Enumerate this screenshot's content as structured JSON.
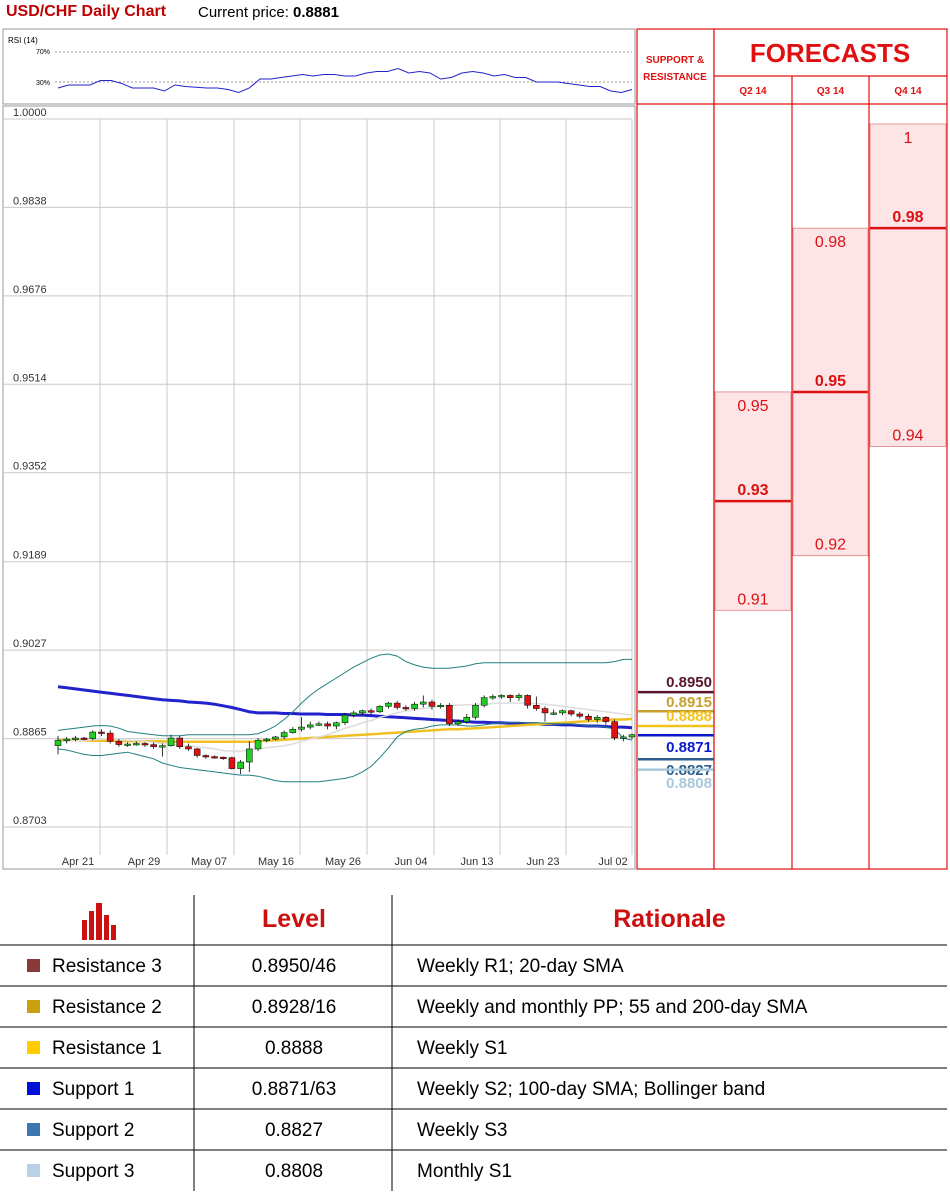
{
  "header": {
    "title": "USD/CHF Daily Chart",
    "price_prefix": "Current price: ",
    "price": "0.8881"
  },
  "rsi": {
    "label": "RSI (14)",
    "level_high": "70%",
    "level_low": "30%",
    "values": [
      52,
      56,
      56,
      56,
      62,
      62,
      58,
      52,
      52,
      52,
      48,
      56,
      54,
      53,
      52,
      52,
      50,
      46,
      52,
      64,
      64,
      66,
      68,
      70,
      68,
      70,
      70,
      68,
      68,
      72,
      74,
      74,
      78,
      72,
      74,
      72,
      64,
      66,
      72,
      74,
      72,
      68,
      70,
      66,
      66,
      60,
      60,
      60,
      58,
      56,
      54,
      54,
      48,
      46,
      50
    ]
  },
  "chart_data": {
    "type": "candlestick",
    "title": "USD/CHF Daily Chart",
    "ylim": [
      0.8703,
      1.0
    ],
    "y_ticks": [
      "1.0000",
      "0.9838",
      "0.9676",
      "0.9514",
      "0.9352",
      "0.9189",
      "0.9027",
      "0.8865",
      "0.8703"
    ],
    "x_ticks": [
      "Apr 21",
      "Apr 29",
      "May 07",
      "May 16",
      "May 26",
      "Jun 04",
      "Jun 13",
      "Jun 23",
      "Jul 02"
    ],
    "grid": true,
    "candles": [
      [
        0.8852,
        0.8862,
        0.8836,
        0.887
      ],
      [
        0.8862,
        0.8864,
        0.8856,
        0.8868
      ],
      [
        0.8864,
        0.8866,
        0.886,
        0.887
      ],
      [
        0.8866,
        0.8865,
        0.8862,
        0.8868
      ],
      [
        0.8865,
        0.8877,
        0.8862,
        0.888
      ],
      [
        0.8877,
        0.8875,
        0.887,
        0.8882
      ],
      [
        0.8875,
        0.886,
        0.8856,
        0.888
      ],
      [
        0.886,
        0.8854,
        0.885,
        0.8864
      ],
      [
        0.8854,
        0.8855,
        0.885,
        0.8858
      ],
      [
        0.8855,
        0.8856,
        0.8852,
        0.886
      ],
      [
        0.8856,
        0.8854,
        0.885,
        0.8858
      ],
      [
        0.8854,
        0.885,
        0.8846,
        0.8858
      ],
      [
        0.885,
        0.8852,
        0.8832,
        0.8856
      ],
      [
        0.8852,
        0.8866,
        0.885,
        0.8872
      ],
      [
        0.8866,
        0.885,
        0.8846,
        0.887
      ],
      [
        0.885,
        0.8846,
        0.8842,
        0.8856
      ],
      [
        0.8846,
        0.8834,
        0.883,
        0.8848
      ],
      [
        0.8834,
        0.8832,
        0.8828,
        0.8836
      ],
      [
        0.8832,
        0.8831,
        0.8828,
        0.8834
      ],
      [
        0.8831,
        0.883,
        0.8826,
        0.8832
      ],
      [
        0.883,
        0.881,
        0.8808,
        0.8832
      ],
      [
        0.881,
        0.8822,
        0.88,
        0.8826
      ],
      [
        0.8822,
        0.8846,
        0.8804,
        0.886
      ],
      [
        0.8846,
        0.8862,
        0.8842,
        0.8866
      ],
      [
        0.8862,
        0.8864,
        0.8858,
        0.8866
      ],
      [
        0.8864,
        0.8868,
        0.8862,
        0.887
      ],
      [
        0.8868,
        0.8876,
        0.8864,
        0.888
      ],
      [
        0.8876,
        0.8882,
        0.8874,
        0.8886
      ],
      [
        0.8882,
        0.8886,
        0.8878,
        0.8904
      ],
      [
        0.8886,
        0.889,
        0.8882,
        0.8896
      ],
      [
        0.889,
        0.8892,
        0.8888,
        0.8896
      ],
      [
        0.8892,
        0.8888,
        0.8882,
        0.8896
      ],
      [
        0.8888,
        0.8894,
        0.8882,
        0.8896
      ],
      [
        0.8894,
        0.8908,
        0.889,
        0.8912
      ],
      [
        0.8908,
        0.8912,
        0.8904,
        0.8916
      ],
      [
        0.8912,
        0.8916,
        0.8908,
        0.8918
      ],
      [
        0.8916,
        0.8914,
        0.891,
        0.892
      ],
      [
        0.8914,
        0.8924,
        0.8912,
        0.8926
      ],
      [
        0.8924,
        0.893,
        0.892,
        0.8932
      ],
      [
        0.893,
        0.8922,
        0.8918,
        0.8934
      ],
      [
        0.8922,
        0.892,
        0.8916,
        0.8926
      ],
      [
        0.892,
        0.8928,
        0.8916,
        0.8932
      ],
      [
        0.8928,
        0.8932,
        0.8922,
        0.8944
      ],
      [
        0.8932,
        0.8924,
        0.8918,
        0.8936
      ],
      [
        0.8924,
        0.8926,
        0.892,
        0.893
      ],
      [
        0.8926,
        0.8892,
        0.8888,
        0.893
      ],
      [
        0.8892,
        0.8896,
        0.8888,
        0.89
      ],
      [
        0.8896,
        0.8904,
        0.8892,
        0.891
      ],
      [
        0.8904,
        0.8926,
        0.89,
        0.893
      ],
      [
        0.8926,
        0.894,
        0.8922,
        0.8944
      ],
      [
        0.894,
        0.8942,
        0.8936,
        0.8946
      ],
      [
        0.8942,
        0.8944,
        0.8938,
        0.8946
      ],
      [
        0.8944,
        0.894,
        0.8932,
        0.8946
      ],
      [
        0.894,
        0.8944,
        0.8934,
        0.8948
      ],
      [
        0.8944,
        0.8926,
        0.892,
        0.8946
      ],
      [
        0.8926,
        0.892,
        0.8916,
        0.8942
      ],
      [
        0.892,
        0.8912,
        0.8896,
        0.8924
      ],
      [
        0.8912,
        0.8912,
        0.8908,
        0.8918
      ],
      [
        0.8912,
        0.8916,
        0.8908,
        0.8918
      ],
      [
        0.8916,
        0.891,
        0.8906,
        0.8918
      ],
      [
        0.891,
        0.8906,
        0.8902,
        0.8914
      ],
      [
        0.8906,
        0.89,
        0.8896,
        0.891
      ],
      [
        0.89,
        0.8904,
        0.8894,
        0.8908
      ],
      [
        0.8904,
        0.8896,
        0.889,
        0.8906
      ],
      [
        0.8896,
        0.8866,
        0.8862,
        0.89
      ],
      [
        0.8866,
        0.8868,
        0.886,
        0.8872
      ],
      [
        0.8868,
        0.8872,
        0.8864,
        0.8874
      ]
    ],
    "series": [
      {
        "name": "",
        "color": "#2222cc",
        "values": [
          0.896,
          0.8958,
          0.8956,
          0.8954,
          0.8952,
          0.895,
          0.8948,
          0.8946,
          0.8944,
          0.8942,
          0.894,
          0.8938,
          0.8936,
          0.8935,
          0.8934,
          0.8932,
          0.8931,
          0.893,
          0.8928,
          0.8925,
          0.8922,
          0.8918,
          0.8914,
          0.8912,
          0.8912,
          0.8912,
          0.8911,
          0.8911,
          0.891,
          0.891,
          0.891,
          0.8909,
          0.8909,
          0.8909,
          0.8908,
          0.8908,
          0.8907,
          0.8906,
          0.8905,
          0.8904,
          0.8903,
          0.8902,
          0.8901,
          0.89,
          0.8899,
          0.8898,
          0.8897,
          0.8896,
          0.8895,
          0.8895,
          0.8894,
          0.8894,
          0.8893,
          0.8893,
          0.8892,
          0.8892,
          0.8891,
          0.8891,
          0.889,
          0.889,
          0.8889,
          0.8888,
          0.8888,
          0.8887,
          0.8886,
          0.8886,
          0.8885
        ]
      },
      {
        "name": "",
        "color": "#f0c020",
        "values": [
          0.8862,
          0.8862,
          0.8862,
          0.8862,
          0.8861,
          0.8861,
          0.8861,
          0.8861,
          0.886,
          0.886,
          0.886,
          0.886,
          0.886,
          0.8859,
          0.8859,
          0.8859,
          0.8859,
          0.8859,
          0.8859,
          0.8859,
          0.8859,
          0.8859,
          0.8859,
          0.886,
          0.8861,
          0.8862,
          0.8863,
          0.8864,
          0.8865,
          0.8866,
          0.8867,
          0.8868,
          0.8869,
          0.887,
          0.8871,
          0.8872,
          0.8873,
          0.8874,
          0.8875,
          0.8876,
          0.8877,
          0.8878,
          0.8879,
          0.888,
          0.8881,
          0.8882,
          0.8882,
          0.8883,
          0.8884,
          0.8885,
          0.8886,
          0.8887,
          0.8888,
          0.8889,
          0.889,
          0.8891,
          0.8892,
          0.8893,
          0.8894,
          0.8895,
          0.8896,
          0.8897,
          0.8898,
          0.8899,
          0.89,
          0.89,
          0.8901
        ]
      },
      {
        "name": "",
        "color": "#dddddd",
        "values": [
          0.886,
          0.886,
          0.8861,
          0.8862,
          0.8863,
          0.8864,
          0.8864,
          0.8863,
          0.8862,
          0.8861,
          0.886,
          0.8858,
          0.8856,
          0.8854,
          0.8853,
          0.8852,
          0.885,
          0.8848,
          0.8846,
          0.8843,
          0.8842,
          0.8842,
          0.8844,
          0.8846,
          0.8848,
          0.885,
          0.8852,
          0.8855,
          0.886,
          0.8864,
          0.8868,
          0.8872,
          0.8878,
          0.8884,
          0.8888,
          0.8894,
          0.8898,
          0.8904,
          0.8908,
          0.8912,
          0.8916,
          0.8918,
          0.892,
          0.8922,
          0.8924,
          0.8926,
          0.8926,
          0.8927,
          0.8928,
          0.8928,
          0.8929,
          0.893,
          0.893,
          0.893,
          0.893,
          0.8929,
          0.8928,
          0.8926,
          0.8924,
          0.8922,
          0.892,
          0.8918,
          0.8916,
          0.8914,
          0.8912,
          0.891,
          0.8908
        ]
      },
      {
        "name": "",
        "color": "#208080",
        "values": [
          0.888,
          0.8882,
          0.8884,
          0.8886,
          0.8888,
          0.8889,
          0.8888,
          0.8884,
          0.8878,
          0.8876,
          0.8874,
          0.8872,
          0.887,
          0.887,
          0.887,
          0.8872,
          0.8872,
          0.8872,
          0.8872,
          0.8872,
          0.8872,
          0.8872,
          0.8872,
          0.8874,
          0.888,
          0.8888,
          0.89,
          0.8914,
          0.893,
          0.8944,
          0.8956,
          0.8966,
          0.8976,
          0.8986,
          0.8996,
          0.9004,
          0.9012,
          0.9018,
          0.902,
          0.9016,
          0.9006,
          0.9,
          0.8996,
          0.8994,
          0.8994,
          0.8994,
          0.8996,
          0.8998,
          0.9002,
          0.9004,
          0.9004,
          0.9004,
          0.9004,
          0.9004,
          0.9004,
          0.9004,
          0.9004,
          0.9004,
          0.9004,
          0.9004,
          0.9004,
          0.9004,
          0.9004,
          0.9004,
          0.9006,
          0.901,
          0.901
        ]
      },
      {
        "name": "",
        "color": "#208080",
        "values": [
          0.8846,
          0.8844,
          0.884,
          0.8836,
          0.8834,
          0.8834,
          0.8836,
          0.8838,
          0.884,
          0.8836,
          0.8832,
          0.8828,
          0.882,
          0.8816,
          0.8812,
          0.881,
          0.8808,
          0.8806,
          0.8804,
          0.8802,
          0.88,
          0.8798,
          0.8798,
          0.8796,
          0.8792,
          0.8788,
          0.8786,
          0.8786,
          0.8786,
          0.8786,
          0.8786,
          0.8788,
          0.879,
          0.8792,
          0.8796,
          0.8804,
          0.8814,
          0.883,
          0.8848,
          0.8868,
          0.8878,
          0.8882,
          0.8884,
          0.8888,
          0.889,
          0.889,
          0.889,
          0.8888,
          0.8888,
          0.889,
          0.8892,
          0.8894,
          0.8894,
          0.8894,
          0.8894,
          0.8894,
          0.8893,
          0.8892,
          0.8892,
          0.8892,
          0.889,
          0.8888,
          0.8888,
          0.8886,
          0.8882,
          0.8866,
          0.8862
        ]
      }
    ],
    "sr_levels": [
      {
        "label": "0.8950",
        "value": 0.895,
        "color": "#5a1530"
      },
      {
        "label": "0.8915",
        "value": 0.8915,
        "color": "#c8a030"
      },
      {
        "label": "0.8888",
        "value": 0.8888,
        "color": "#f2c418"
      },
      {
        "label": "0.8871",
        "value": 0.8871,
        "color": "#0a1ac8"
      },
      {
        "label": "0.8827",
        "value": 0.8827,
        "color": "#2c5f8c"
      },
      {
        "label": "0.8808",
        "value": 0.8808,
        "color": "#a8c8dc"
      }
    ],
    "forecasts": [
      {
        "quarter": "Q2 14",
        "high": 0.95,
        "mid": 0.93,
        "low": 0.91,
        "high_label": "0.95",
        "mid_label": "0.93",
        "low_label": "0.91"
      },
      {
        "quarter": "Q3 14",
        "high": 0.98,
        "mid": 0.95,
        "low": 0.92,
        "high_label": "0.98",
        "mid_label": "0.95",
        "low_label": "0.92"
      },
      {
        "quarter": "Q4 14",
        "high": 1.0,
        "mid": 0.98,
        "low": 0.94,
        "high_label": "1",
        "mid_label": "0.98",
        "low_label": "0.94"
      }
    ]
  },
  "forecast_panel": {
    "title": "FORECASTS",
    "sr_header_line1": "SUPPORT &",
    "sr_header_line2": "RESISTANCE"
  },
  "table": {
    "header_level": "Level",
    "header_rationale": "Rationale",
    "rows": [
      {
        "name": "Resistance 3",
        "level": "0.8950/46",
        "rationale": "Weekly R1; 20-day SMA",
        "color": "#8b3a3a"
      },
      {
        "name": "Resistance 2",
        "level": "0.8928/16",
        "rationale": "Weekly and monthly PP; 55 and 200-day SMA",
        "color": "#c8a010"
      },
      {
        "name": "Resistance 1",
        "level": "0.8888",
        "rationale": "Weekly S1",
        "color": "#ffcc00"
      },
      {
        "name": "Support 1",
        "level": "0.8871/63",
        "rationale": "Weekly S2; 100-day SMA; Bollinger band",
        "color": "#0010d8"
      },
      {
        "name": "Support 2",
        "level": "0.8827",
        "rationale": "Weekly S3",
        "color": "#3c78b0"
      },
      {
        "name": "Support 3",
        "level": "0.8808",
        "rationale": "Monthly S1",
        "color": "#b8d0e8"
      }
    ]
  }
}
